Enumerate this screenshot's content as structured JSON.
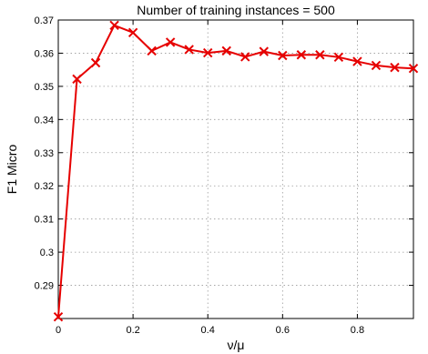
{
  "chart_data": {
    "type": "line",
    "title": "Number of training instances = 500",
    "xlabel": "ν/μ",
    "ylabel": "F1 Micro",
    "xlim": [
      0,
      0.95
    ],
    "ylim": [
      0.28,
      0.37
    ],
    "xticks": [
      0,
      0.2,
      0.4,
      0.6,
      0.8
    ],
    "xtick_labels": [
      "0",
      "0.2",
      "0.4",
      "0.6",
      "0.8"
    ],
    "yticks": [
      0.29,
      0.3,
      0.31,
      0.32,
      0.33,
      0.34,
      0.35,
      0.36,
      0.37
    ],
    "ytick_labels": [
      "0.29",
      "0.3",
      "0.31",
      "0.32",
      "0.33",
      "0.34",
      "0.35",
      "0.36",
      "0.37"
    ],
    "grid": true,
    "marker": "x",
    "line_color": "#e60000",
    "series": [
      {
        "x": [
          0,
          0.05,
          0.1,
          0.15,
          0.2,
          0.25,
          0.3,
          0.35,
          0.4,
          0.45,
          0.5,
          0.55,
          0.6,
          0.65,
          0.7,
          0.75,
          0.8,
          0.85,
          0.9,
          0.95
        ],
        "y": [
          0.2805,
          0.3522,
          0.3571,
          0.3684,
          0.3662,
          0.3607,
          0.3633,
          0.3611,
          0.3601,
          0.3607,
          0.3589,
          0.3605,
          0.3593,
          0.3595,
          0.3595,
          0.3588,
          0.3575,
          0.3563,
          0.3557,
          0.3554
        ]
      }
    ]
  }
}
